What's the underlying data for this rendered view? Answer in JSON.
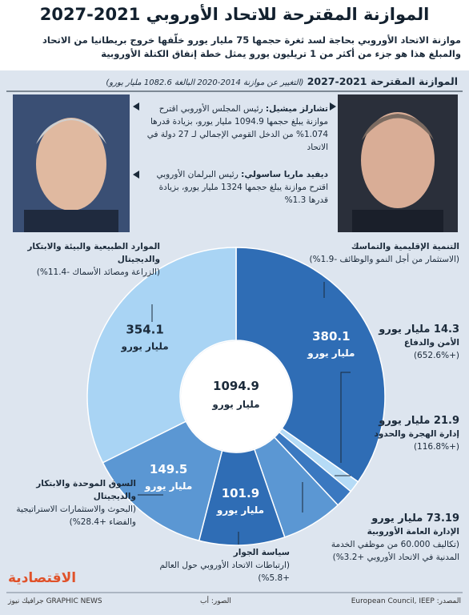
{
  "header": {
    "title": "الموازنة المقترحة للاتحاد الأوروبي 2021-2027",
    "subtitle": "موازنة الاتحاد الأوروبي بحاجة لسد ثغرة حجمها 75 مليار يورو خلّفها خروج بريطانيا من الاتحاد والمبلغ هذا هو جزء من أكثر من 1 تريليون يورو يمثل خطة إنفاق الكتلة الأوروبية"
  },
  "section": {
    "title": "الموازنة المقترحة 2021-2027",
    "note": "(التغيير عن موازنة 2014-2020 البالغة 1082.6 مليار يورو)"
  },
  "people": [
    {
      "name": "تشارلز ميشيل:",
      "text": "رئيس المجلس الأوروبي اقترح موازنة يبلغ حجمها 1094.9 مليار يورو، بزيادة قدرها 1.074% من الدخل القومي الإجمالي لـ 27 دولة في الاتحاد"
    },
    {
      "name": "ديفيد ماريا ساسولي:",
      "text": "رئيس البرلمان الأوروبي اقترح موازنة يبلغ حجمها 1324 مليار يورو، بزيادة قدرها 1.3%"
    }
  ],
  "chart_data": {
    "type": "donut",
    "unit": "مليار يورو",
    "total": 1094.9,
    "categories": [
      "التنمية الإقليمية والتماسك",
      "الأمن والدفاع",
      "إدارة الهجرة والحدود",
      "الإدارة العامة الأوروبية",
      "سياسة الجوار",
      "السوق الموحدة والابتكار والديجيتال",
      "الموارد الطبيعية والبيئة والابتكار والديجيتال"
    ],
    "descriptions": [
      "(الاستثمار من أجل النمو والوظائف -1.9%)",
      "(+652.6%)",
      "(+116.8%)",
      "(تكاليف 60.000 من موظفي الخدمة المدنية في الاتحاد الأوروبي +3.2%)",
      "(ارتباطات الاتحاد الأوروبي حول العالم +5.8%)",
      "(البحوث والاستثمارات الاستراتيجية والفضاء +28.4%)",
      "(الزراعة ومصائد الأسماك -11.4%)"
    ],
    "values": [
      380.1,
      14.3,
      21.9,
      73.19,
      101.9,
      149.5,
      354.1
    ],
    "colors": [
      "#2f6db5",
      "#b5dbf6",
      "#3a78c0",
      "#5b97d3",
      "#2f6db5",
      "#5b97d3",
      "#a9d4f4"
    ]
  },
  "footer": {
    "source": "المصدر: European Council, IEEP",
    "photos": "الصور: أب",
    "agency": "GRAPHIC NEWS جرافيك نيوز",
    "logo": "الاقتصادية"
  }
}
